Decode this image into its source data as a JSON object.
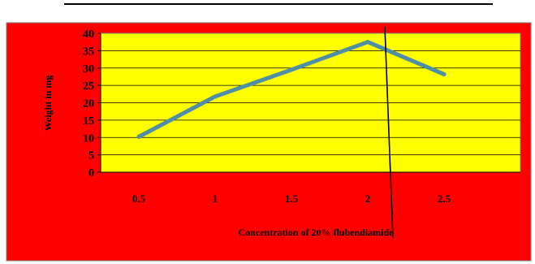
{
  "chart_data": {
    "type": "line",
    "title": "",
    "xlabel": "Concentration of 20% flubendiamide",
    "ylabel": "Weight in mg",
    "categories": [
      "0.5",
      "1",
      "1.5",
      "2",
      "2.5"
    ],
    "series": [
      {
        "values": [
          10.2,
          21.8,
          29.5,
          37.5,
          28.2
        ]
      }
    ],
    "ylim": [
      0,
      40
    ],
    "yticks": [
      "0",
      "5",
      "10",
      "15",
      "20",
      "25",
      "30",
      "35",
      "40"
    ],
    "ystep": 5,
    "grid": true,
    "legend": "none",
    "colors": {
      "chart_background": "#ff0000",
      "plot_background": "#ffff00",
      "line": "#4f8fa6",
      "grid": "#000000"
    }
  }
}
